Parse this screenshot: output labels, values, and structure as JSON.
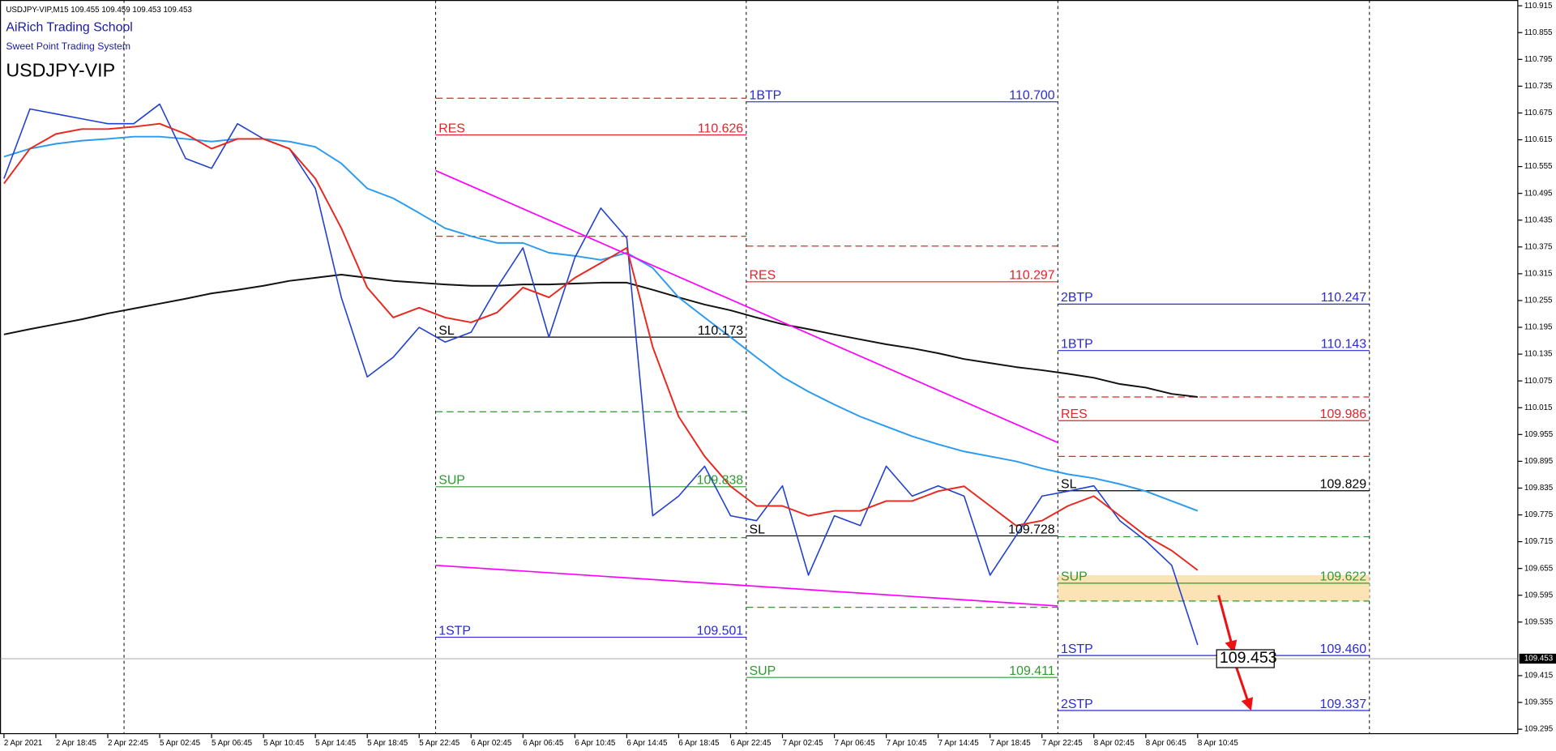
{
  "header": {
    "info": "USDJPY-VIP,M15  109.455 109.459 109.453 109.453",
    "school": "AiRich Trading School",
    "system": "Sweet Point Trading System",
    "symbol": "USDJPY-VIP"
  },
  "chart_data": {
    "type": "line",
    "categories": [
      "2 Apr 2021",
      null,
      "2 Apr 18:45",
      null,
      "2 Apr 22:45",
      null,
      "5 Apr 02:45",
      null,
      "5 Apr 06:45",
      null,
      "5 Apr 10:45",
      null,
      "5 Apr 14:45",
      null,
      "5 Apr 18:45",
      null,
      "5 Apr 22:45",
      null,
      "6 Apr 02:45",
      null,
      "6 Apr 06:45",
      null,
      "6 Apr 10:45",
      null,
      "6 Apr 14:45",
      null,
      "6 Apr 18:45",
      null,
      "6 Apr 22:45",
      null,
      "7 Apr 02:45",
      null,
      "7 Apr 06:45",
      null,
      "7 Apr 10:45",
      null,
      "7 Apr 14:45",
      null,
      "7 Apr 18:45",
      null,
      "7 Apr 22:45",
      null,
      "8 Apr 02:45",
      null,
      "8 Apr 06:45",
      null,
      "8 Apr 10:45"
    ],
    "series": [
      {
        "color": "#111111",
        "values": [
          110.179,
          110.191,
          110.202,
          110.213,
          110.226,
          110.237,
          110.248,
          110.259,
          110.271,
          110.279,
          110.288,
          110.299,
          110.306,
          110.313,
          110.306,
          110.299,
          110.295,
          110.291,
          110.288,
          110.288,
          110.291,
          110.291,
          110.293,
          110.295,
          110.295,
          110.279,
          110.262,
          110.246,
          110.233,
          110.217,
          110.202,
          110.191,
          110.179,
          110.168,
          110.157,
          110.148,
          110.137,
          110.124,
          110.115,
          110.106,
          110.099,
          110.091,
          110.082,
          110.068,
          110.06,
          110.046,
          110.039
        ]
      },
      {
        "color": "#2b9bf0",
        "values": [
          110.577,
          110.595,
          110.606,
          110.613,
          110.617,
          110.622,
          110.622,
          110.617,
          110.611,
          110.617,
          110.617,
          110.611,
          110.599,
          110.562,
          110.506,
          110.484,
          110.451,
          110.417,
          110.399,
          110.384,
          110.384,
          110.362,
          110.355,
          110.346,
          110.362,
          110.328,
          110.262,
          110.217,
          110.173,
          110.128,
          110.084,
          110.051,
          110.022,
          109.995,
          109.973,
          109.951,
          109.933,
          109.917,
          109.906,
          109.895,
          109.879,
          109.866,
          109.857,
          109.844,
          109.828,
          109.806,
          109.784
        ]
      },
      {
        "color": "#2040d0",
        "values": [
          110.528,
          110.684,
          110.673,
          110.662,
          110.651,
          110.651,
          110.695,
          110.573,
          110.551,
          110.651,
          110.617,
          110.595,
          110.506,
          110.262,
          110.084,
          110.128,
          110.195,
          110.162,
          110.184,
          110.284,
          110.373,
          110.173,
          110.351,
          110.462,
          110.395,
          109.773,
          109.817,
          109.884,
          109.773,
          109.762,
          109.84,
          109.64,
          109.773,
          109.751,
          109.884,
          109.817,
          109.84,
          109.817,
          109.64,
          109.728,
          109.817,
          109.828,
          109.84,
          109.762,
          109.717,
          109.662,
          109.484
        ]
      },
      {
        "color": "#e8271e",
        "values": [
          110.517,
          110.595,
          110.628,
          110.639,
          110.639,
          110.644,
          110.651,
          110.628,
          110.595,
          110.617,
          110.617,
          110.595,
          110.528,
          110.417,
          110.284,
          110.217,
          110.239,
          110.217,
          110.206,
          110.228,
          110.284,
          110.262,
          110.306,
          110.339,
          110.373,
          110.151,
          109.995,
          109.906,
          109.839,
          109.795,
          109.795,
          109.773,
          109.784,
          109.784,
          109.806,
          109.806,
          109.828,
          109.839,
          109.795,
          109.751,
          109.762,
          109.795,
          109.817,
          109.773,
          109.728,
          109.695,
          109.651
        ]
      }
    ],
    "ylim": [
      109.284,
      110.928
    ],
    "yticks": [
      110.915,
      110.855,
      110.795,
      110.735,
      110.675,
      110.615,
      110.555,
      110.495,
      110.435,
      110.375,
      110.315,
      110.255,
      110.195,
      110.135,
      110.075,
      110.015,
      109.955,
      109.895,
      109.835,
      109.775,
      109.715,
      109.655,
      109.595,
      109.535,
      109.415,
      109.355,
      109.295
    ],
    "current_price": {
      "value": 109.453
    },
    "levels": [
      [
        {
          "value": 110.708,
          "color": "#e8202a",
          "dashed": true
        },
        {
          "name": "RES",
          "value": 110.626,
          "value_label": "110.626",
          "color": "#e8202a"
        },
        {
          "value": 110.399,
          "color": "#e8202a",
          "dashed": true
        },
        {
          "name": "SL",
          "value": 110.173,
          "value_label": "110.173",
          "color": "#000000"
        },
        {
          "value": 110.006,
          "color": "#2e9a2e",
          "dashed": true
        },
        {
          "name": "SUP",
          "value": 109.838,
          "value_label": "109.838",
          "color": "#2e9a2e"
        },
        {
          "value": 109.724,
          "color": "#2e9a2e",
          "dashed": true
        },
        {
          "name": "1STP",
          "value": 109.501,
          "value_label": "109.501",
          "color": "#2a2ad8"
        }
      ],
      [
        {
          "name": "1BTP",
          "value": 110.7,
          "value_label": "110.700",
          "color": "#2a2ad8"
        },
        {
          "value": 110.377,
          "color": "#e8202a",
          "dashed": true
        },
        {
          "name": "RES",
          "value": 110.297,
          "value_label": "110.297",
          "color": "#e8202a"
        },
        {
          "name": "SL",
          "value": 109.728,
          "value_label": "109.728",
          "color": "#000000"
        },
        {
          "value": 109.568,
          "color": "#2e9a2e",
          "dashed": true
        },
        {
          "name": "SUP",
          "value": 109.411,
          "value_label": "109.411",
          "color": "#2e9a2e"
        }
      ],
      [
        {
          "name": "2BTP",
          "value": 110.247,
          "value_label": "110.247",
          "color": "#2a2ad8"
        },
        {
          "name": "1BTP",
          "value": 110.143,
          "value_label": "110.143",
          "color": "#2a2ad8"
        },
        {
          "value": 110.039,
          "color": "#e8202a",
          "dashed": true
        },
        {
          "name": "RES",
          "value": 109.986,
          "value_label": "109.986",
          "color": "#e8202a"
        },
        {
          "value": 109.906,
          "color": "#e8202a",
          "dashed": true
        },
        {
          "name": "SL",
          "value": 109.829,
          "value_label": "109.829",
          "color": "#000000"
        },
        {
          "value": 109.726,
          "color": "#2e9a2e",
          "dashed": true
        },
        {
          "name": "SUP",
          "value": 109.622,
          "value_label": "109.622",
          "color": "#2e9a2e"
        },
        {
          "value": 109.582,
          "color": "#2e9a2e",
          "dashed": true
        },
        {
          "name": "1STP",
          "value": 109.46,
          "value_label": "109.460",
          "color": "#2a2ad8"
        },
        {
          "name": "2STP",
          "value": 109.337,
          "value_label": "109.337",
          "color": "#2a2ad8"
        }
      ]
    ],
    "zone": {
      "values": [
        109.582,
        109.64
      ],
      "color": "#fbe3b5"
    },
    "trendlines": [
      {
        "color": "#ff00ff",
        "values": [
          110.546,
          109.937
        ]
      },
      {
        "color": "#ff00ff",
        "values": [
          109.662,
          109.571
        ]
      }
    ]
  }
}
